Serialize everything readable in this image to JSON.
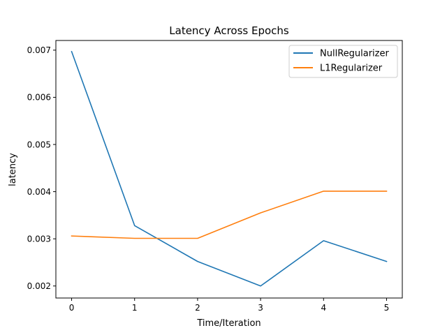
{
  "chart_data": {
    "type": "line",
    "title": "Latency Across Epochs",
    "xlabel": "Time/Iteration",
    "ylabel": "latency",
    "x": [
      0,
      1,
      2,
      3,
      4,
      5
    ],
    "xlim": [
      -0.25,
      5.25
    ],
    "ylim": [
      0.001745,
      0.007205
    ],
    "xticks": [
      "0",
      "1",
      "2",
      "3",
      "4",
      "5"
    ],
    "yticks": [
      "0.002",
      "0.003",
      "0.004",
      "0.005",
      "0.006",
      "0.007"
    ],
    "grid": false,
    "legend_position": "top-right",
    "series": [
      {
        "name": "NullRegularizer",
        "color": "#1f77b4",
        "values": [
          0.00697,
          0.00328,
          0.00252,
          0.002,
          0.00296,
          0.00252
        ]
      },
      {
        "name": "L1Regularizer",
        "color": "#ff7f0e",
        "values": [
          0.00306,
          0.00301,
          0.00301,
          0.00355,
          0.00401,
          0.00401
        ]
      }
    ]
  }
}
